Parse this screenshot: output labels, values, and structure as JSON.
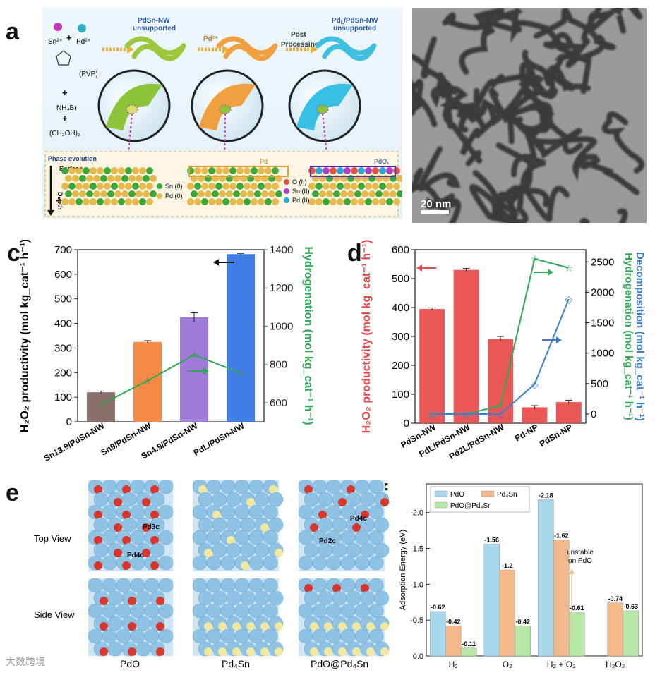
{
  "panel_labels": {
    "a": "a",
    "b": "b",
    "c": "c",
    "d": "d",
    "e": "e",
    "f": "f"
  },
  "panel_a": {
    "reagents": [
      "Sn²⁺",
      "Pd²⁺",
      "(PVP)",
      "NH₄Br",
      "(CH₂OH)₂"
    ],
    "plus": "+",
    "stage1_label": "PdSn-NW unsupported",
    "arrow1_label": "Pd²⁺",
    "arrow2_label": "Post Processing",
    "stage3_label": "PdL/PdSn-NW unsupported",
    "phase_evolution": "Phase evolution",
    "surface": "Surface",
    "depth": "Depth",
    "pd_box_label": "Pd",
    "pdox_box_label": "PdOₓ",
    "legend1": [
      "Sn (0)",
      "Pd (0)"
    ],
    "legend2": [
      "O (II)",
      "Sn (II)",
      "Pd (II)"
    ],
    "colors": {
      "sn0": "#3aa83a",
      "pd0": "#e6b94a",
      "o": "#e0533f",
      "sn2": "#b03fc7",
      "pd2": "#2aa7d8"
    }
  },
  "panel_b": {
    "scale_label": "20 nm"
  },
  "chart_data": [
    {
      "id": "c",
      "type": "bar",
      "categories": [
        "Sn13.9/PdSn-NW",
        "Sn9/PdSn-NW",
        "Sn4.9/PdSn-NW",
        "PdL/PdSn-NW"
      ],
      "values": [
        120,
        325,
        425,
        682
      ],
      "errors": [
        5,
        5,
        18,
        3
      ],
      "bar_colors": [
        "#8a6e68",
        "#f48a44",
        "#a07ad8",
        "#3f7ee6"
      ],
      "line_series": {
        "values": [
          590,
          715,
          850,
          755
        ],
        "errors": [
          8,
          8,
          10,
          25
        ],
        "color": "#2eaa55"
      },
      "ylabel": "H₂O₂ productivity (mol kg_cat⁻¹ h⁻¹)",
      "ylim": [
        0,
        700
      ],
      "yticks": [
        "0",
        "100",
        "200",
        "300",
        "400",
        "500",
        "600",
        "700"
      ],
      "y2label": "Hydrogenation (mol kg_cat⁻¹ h⁻¹)",
      "y2lim": [
        500,
        1400
      ],
      "y2ticks": [
        "600",
        "800",
        "1000",
        "1200",
        "1400"
      ]
    },
    {
      "id": "d",
      "type": "bar",
      "categories": [
        "PdSn-NW",
        "PdL/PdSn-NW",
        "Pd2L/PdSn-NW",
        "Pd-NP",
        "PdSn-NP"
      ],
      "values": [
        395,
        530,
        292,
        55,
        73
      ],
      "errors": [
        4,
        5,
        8,
        6,
        6
      ],
      "bar_color": "#e84545",
      "hydrogenation": {
        "values": [
          0,
          0,
          140,
          2550,
          2400
        ],
        "color": "#2eaa55"
      },
      "decomposition": {
        "values": [
          0,
          0,
          0,
          490,
          1890
        ],
        "color": "#3a7fd0"
      },
      "ylabel": "H₂O₂ productivity (mol kg_cat⁻¹ h⁻¹)",
      "ylim": [
        0,
        600
      ],
      "yticks": [
        "0",
        "100",
        "200",
        "300",
        "400",
        "500",
        "600"
      ],
      "y2label_blue": "Decomposition (mol kg_cat⁻¹ h⁻¹)",
      "y2label_green": "Hydrogenation (mol kg_cat⁻¹ h⁻¹)",
      "y2lim": [
        -150,
        2700
      ],
      "y2ticks": [
        "0",
        "500",
        "1000",
        "1500",
        "2000",
        "2500"
      ]
    },
    {
      "id": "f",
      "type": "bar",
      "categories": [
        "H₂",
        "O₂",
        "H₂ + O₂",
        "H₂O₂"
      ],
      "series": [
        {
          "name": "PdO",
          "values": [
            -0.62,
            -1.56,
            -2.18,
            null
          ],
          "labels": [
            "-0.62",
            "-1.56",
            "-2.18",
            ""
          ],
          "color": "#a8d8ee"
        },
        {
          "name": "Pd₄Sn",
          "values": [
            -0.42,
            -1.2,
            -1.62,
            -0.74
          ],
          "labels": [
            "-0.42",
            "-1.2",
            "-1.62",
            "-0.74"
          ],
          "color": "#f4b98a"
        },
        {
          "name": "PdO@Pd₄Sn",
          "values": [
            -0.11,
            -0.42,
            -0.61,
            -0.63
          ],
          "labels": [
            "-0.11",
            "-0.42",
            "-0.61",
            "-0.63"
          ],
          "color": "#b8e8a8"
        }
      ],
      "ylabel": "Adsorption Energy (eV)",
      "ylim": [
        0,
        -2.4
      ],
      "yticks": [
        "0.0",
        "-0.5",
        "-1.0",
        "-1.5",
        "-2.0"
      ],
      "annotation": "unstable on PdO"
    }
  ],
  "panel_e": {
    "row_labels": [
      "Top View",
      "Side View"
    ],
    "column_labels": [
      "PdO",
      "Pd₄Sn",
      "PdO@Pd₄Sn"
    ],
    "site_labels": [
      "Pd3c",
      "Pd4c",
      "Pd4c",
      "Pd2c"
    ]
  },
  "watermark": "大数跨境"
}
